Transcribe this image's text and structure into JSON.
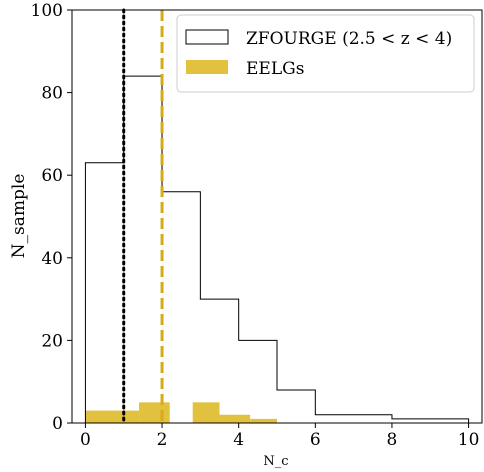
{
  "colors": {
    "zfourge_edge": "#000000",
    "eelg_fill": "#e2c13e",
    "median_zfourge_line": "#000000",
    "median_eelg_line": "#d8a91a"
  },
  "chart_data": {
    "type": "histogram",
    "title": "",
    "xlabel": "N_c",
    "ylabel": "N_sample",
    "xlim": [
      -0.35,
      10.35
    ],
    "ylim": [
      0,
      100
    ],
    "xticks": [
      0,
      2,
      4,
      6,
      8,
      10
    ],
    "yticks": [
      0,
      20,
      40,
      60,
      80,
      100
    ],
    "grid": false,
    "legend_position": "top-right",
    "series": [
      {
        "name": "ZFOURGE (2.5 < z < 4)",
        "style": "step-outline",
        "bins": [
          {
            "x0": 0,
            "x1": 1,
            "count": 63
          },
          {
            "x0": 1,
            "x1": 2,
            "count": 84
          },
          {
            "x0": 2,
            "x1": 3,
            "count": 56
          },
          {
            "x0": 3,
            "x1": 4,
            "count": 30
          },
          {
            "x0": 4,
            "x1": 5,
            "count": 20
          },
          {
            "x0": 5,
            "x1": 6,
            "count": 8
          },
          {
            "x0": 6,
            "x1": 8,
            "count": 2
          },
          {
            "x0": 8,
            "x1": 10,
            "count": 1
          }
        ]
      },
      {
        "name": "EELGs",
        "style": "filled",
        "bins": [
          {
            "x0": 0,
            "x1": 1,
            "count": 3
          },
          {
            "x0": 1,
            "x1": 1.4,
            "count": 3
          },
          {
            "x0": 1.4,
            "x1": 2.2,
            "count": 5
          },
          {
            "x0": 2.8,
            "x1": 3.5,
            "count": 5
          },
          {
            "x0": 3.5,
            "x1": 4.3,
            "count": 2
          },
          {
            "x0": 4.3,
            "x1": 5.0,
            "count": 1
          }
        ]
      }
    ],
    "vlines": [
      {
        "x": 1,
        "style": "dotted",
        "color": "#000000"
      },
      {
        "x": 2,
        "style": "dashed",
        "color": "#d8a91a"
      }
    ],
    "legend": {
      "zfourge_label": "ZFOURGE (2.5 < z < 4)",
      "eelg_label": "EELGs"
    }
  }
}
